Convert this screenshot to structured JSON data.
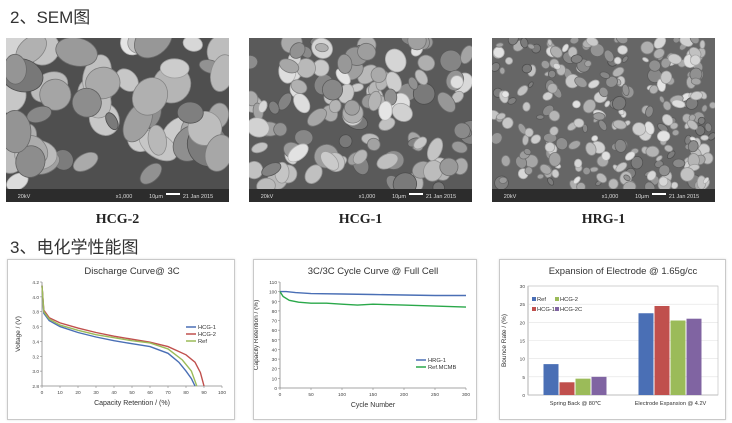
{
  "sections": {
    "sem_heading": "2、SEM图",
    "perf_heading": "3、电化学性能图"
  },
  "sem_images": [
    {
      "caption": "HCG-2",
      "footer": [
        "20kV",
        "x1,000",
        "10μm",
        "21 Jan 2015"
      ]
    },
    {
      "caption": "HCG-1",
      "footer": [
        "20kV",
        "x1,000",
        "10μm",
        "21 Jan 2015"
      ]
    },
    {
      "caption": "HRG-1",
      "footer": [
        "20kV",
        "x1,000",
        "10μm",
        "21 Jan 2015"
      ]
    }
  ],
  "colors": {
    "blue": "#4a6fb5",
    "red": "#c0504d",
    "green": "#9bbb59",
    "purple": "#8064a2",
    "green2": "#2aa84a"
  },
  "chart_data": [
    {
      "type": "line",
      "title": "Discharge Curve@ 3C",
      "xlabel": "Capacity Retention / (%)",
      "ylabel": "Voltage / (V)",
      "xlim": [
        0,
        100
      ],
      "ylim": [
        2.8,
        4.2
      ],
      "xticks": [
        "0",
        "10",
        "20",
        "30",
        "40",
        "50",
        "60",
        "70",
        "80",
        "90",
        "100"
      ],
      "yticks": [
        "2.8",
        "3.0",
        "3.2",
        "3.4",
        "3.6",
        "3.8",
        "4.0",
        "4.2"
      ],
      "legend_position": "right",
      "series": [
        {
          "name": "HCG-1",
          "color": "#4a6fb5",
          "x": [
            0,
            1,
            4,
            10,
            20,
            30,
            40,
            50,
            60,
            70,
            76,
            80,
            83,
            85
          ],
          "y": [
            4.15,
            3.78,
            3.68,
            3.6,
            3.52,
            3.46,
            3.41,
            3.37,
            3.33,
            3.24,
            3.12,
            3.0,
            2.9,
            2.8
          ]
        },
        {
          "name": "HCG-2",
          "color": "#c0504d",
          "x": [
            0,
            1,
            4,
            10,
            20,
            30,
            40,
            50,
            60,
            70,
            80,
            85,
            88,
            90
          ],
          "y": [
            4.15,
            3.82,
            3.72,
            3.65,
            3.58,
            3.52,
            3.47,
            3.43,
            3.39,
            3.33,
            3.22,
            3.12,
            2.98,
            2.8
          ]
        },
        {
          "name": "Ref",
          "color": "#9bbb59",
          "x": [
            0,
            1,
            4,
            10,
            20,
            30,
            40,
            50,
            60,
            70,
            78,
            83,
            86
          ],
          "y": [
            4.15,
            3.8,
            3.7,
            3.62,
            3.55,
            3.49,
            3.45,
            3.41,
            3.38,
            3.3,
            3.15,
            3.0,
            2.8
          ]
        }
      ]
    },
    {
      "type": "line",
      "title": "3C/3C Cycle Curve @ Full Cell",
      "xlabel": "Cycle Number",
      "ylabel": "Capacity Retention / (%)",
      "xlim": [
        0,
        300
      ],
      "ylim": [
        0,
        110
      ],
      "xticks": [
        "0",
        "50",
        "100",
        "150",
        "200",
        "250",
        "300"
      ],
      "yticks": [
        "0",
        "10",
        "20",
        "30",
        "40",
        "50",
        "60",
        "70",
        "80",
        "90",
        "100",
        "110"
      ],
      "legend_position": "bottom-right",
      "series": [
        {
          "name": "HRG-1",
          "color": "#4a6fb5",
          "x": [
            0,
            10,
            25,
            50,
            100,
            150,
            200,
            250,
            300
          ],
          "y": [
            100,
            100,
            99,
            98,
            97.5,
            97,
            96.5,
            96,
            96
          ]
        },
        {
          "name": "Ref.MCMB",
          "color": "#2aa84a",
          "x": [
            0,
            5,
            15,
            30,
            50,
            75,
            100,
            125,
            150,
            200,
            250,
            300
          ],
          "y": [
            100,
            95,
            91,
            89,
            88,
            88,
            87,
            86,
            87,
            86,
            85,
            84
          ]
        }
      ]
    },
    {
      "type": "bar",
      "title": "Expansion of Electrode @ 1.65g/cc",
      "xlabel": "",
      "ylabel": "Bounce Rate / (%)",
      "ylim": [
        0,
        30
      ],
      "yticks": [
        "0",
        "5",
        "10",
        "15",
        "20",
        "25",
        "30"
      ],
      "categories": [
        "Spring Back @ 80℃",
        "Electrode Expansion @ 4.2V"
      ],
      "legend_position": "top-left",
      "series": [
        {
          "name": "Ref",
          "color": "#4a6fb5",
          "values": [
            8.5,
            22.5
          ]
        },
        {
          "name": "HCG-1",
          "color": "#c0504d",
          "values": [
            3.5,
            24.5
          ]
        },
        {
          "name": "HCG-2",
          "color": "#9bbb59",
          "values": [
            4.5,
            20.5
          ]
        },
        {
          "name": "HCG-2C",
          "color": "#8064a2",
          "values": [
            5,
            21
          ]
        }
      ]
    }
  ]
}
